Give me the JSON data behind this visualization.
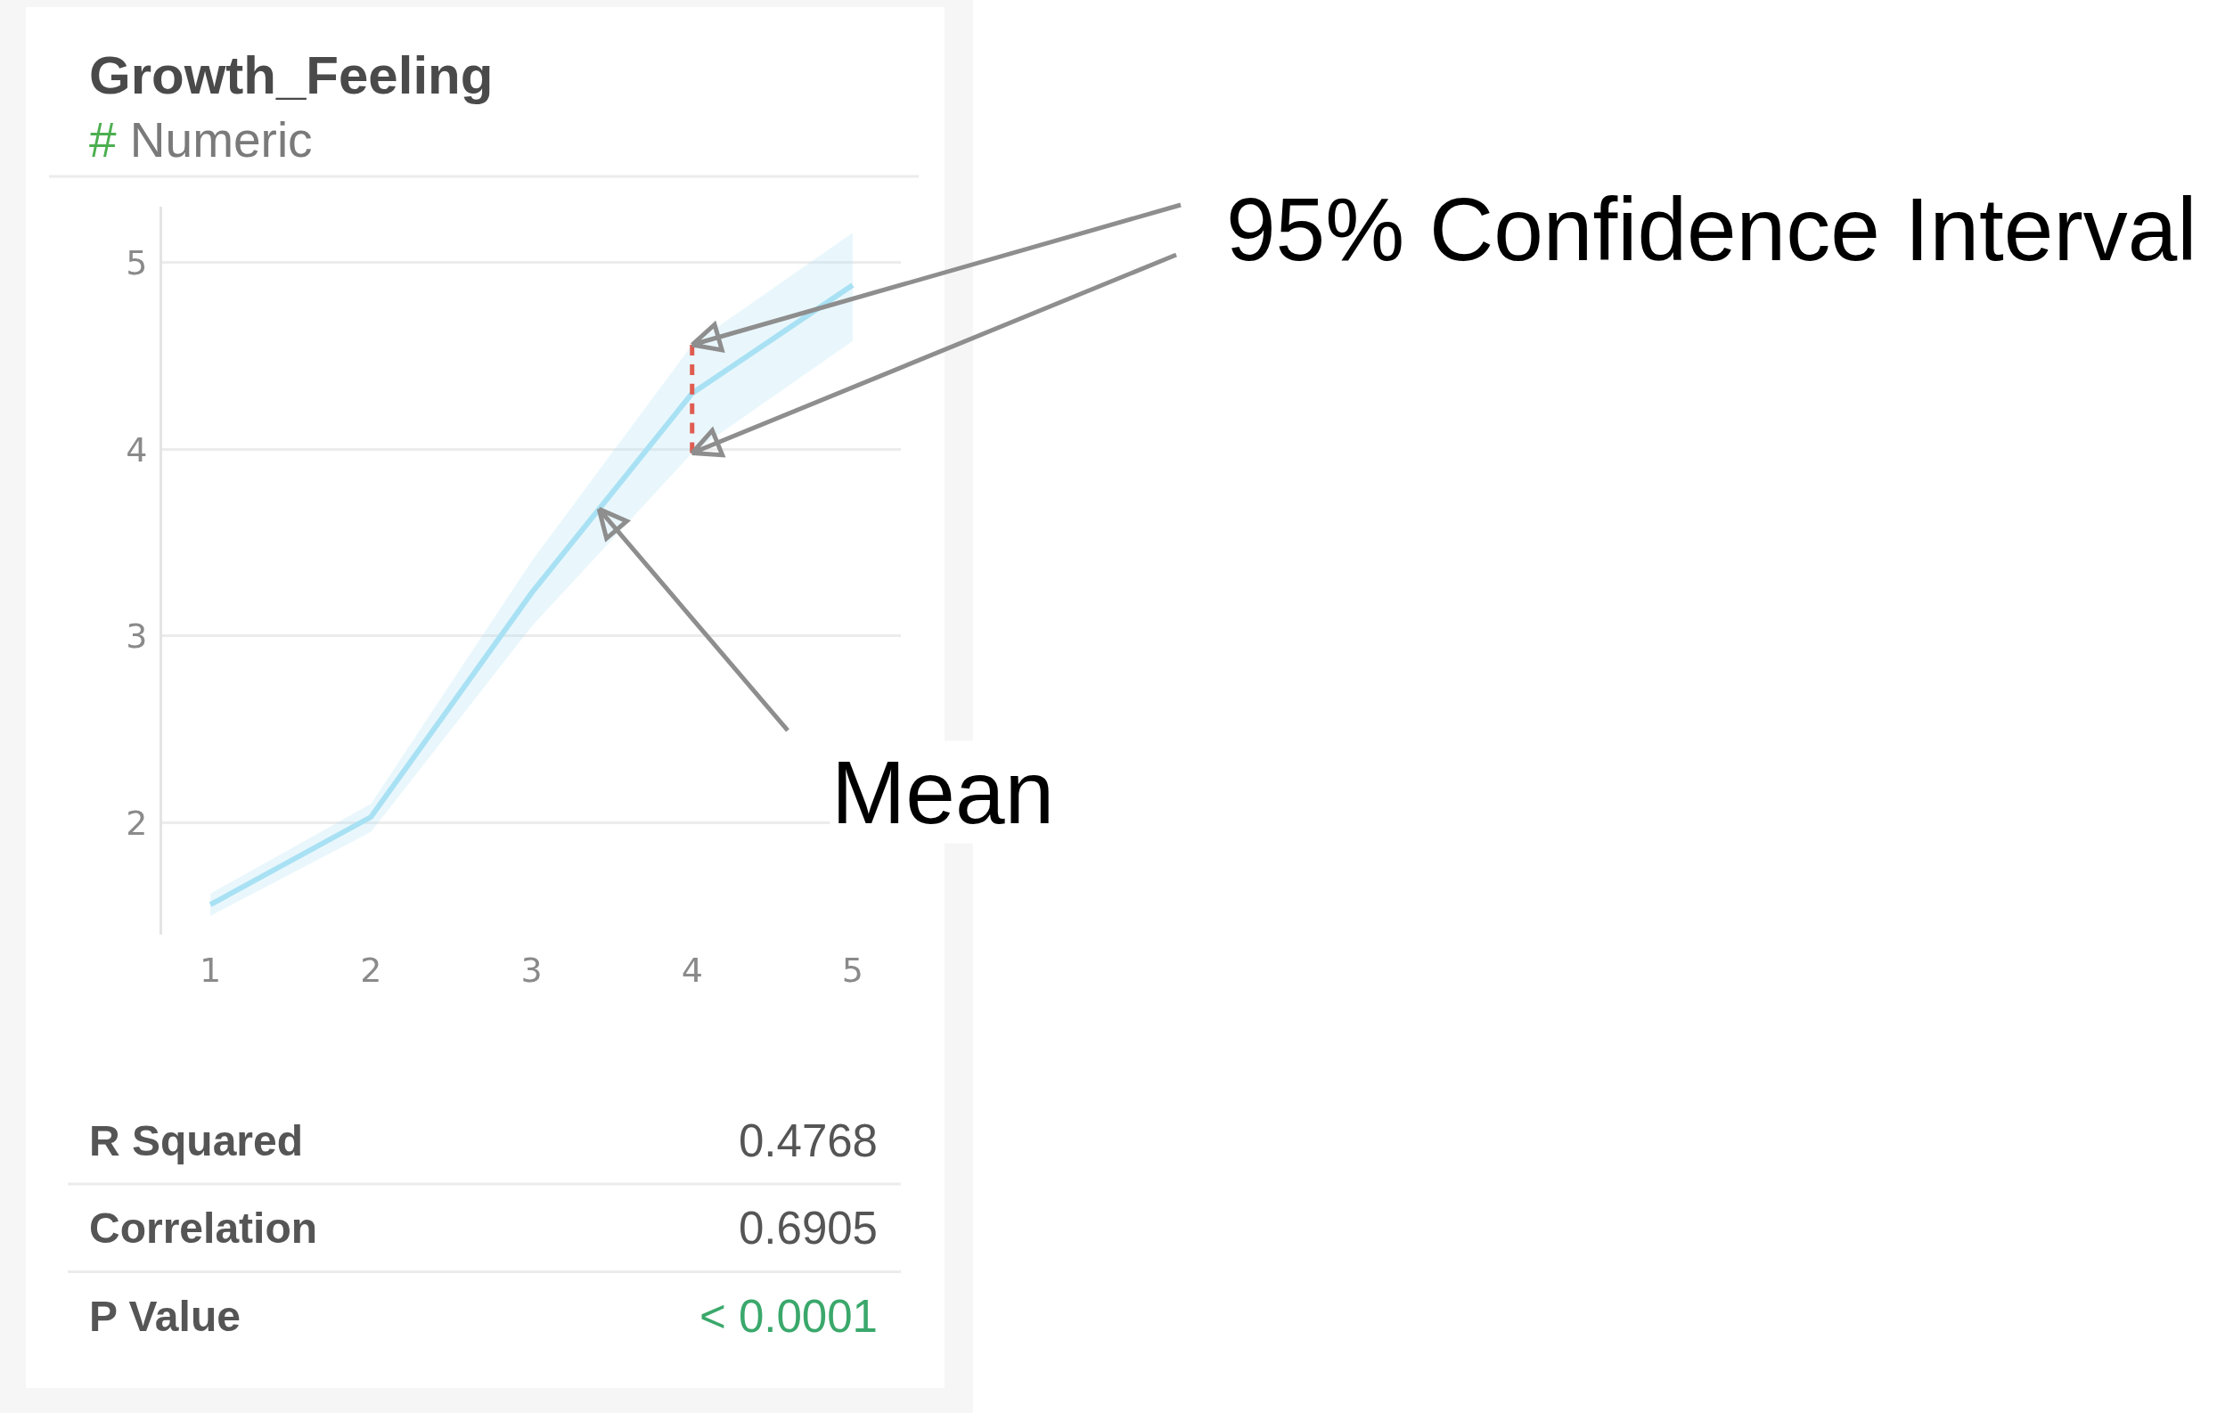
{
  "chart_data": {
    "type": "line",
    "title": "Growth_Feeling",
    "subtitle": "# Numeric",
    "x": [
      1,
      2,
      3,
      4,
      5
    ],
    "series": [
      {
        "color": "#a9e1f4",
        "values": [
          1.56,
          2.03,
          3.23,
          4.3,
          4.88
        ],
        "lower": [
          1.5,
          1.95,
          3.05,
          3.98,
          4.58
        ],
        "upper": [
          1.62,
          2.1,
          3.4,
          4.56,
          5.16
        ]
      },
      {
        "type": "line",
        "x": [
          4,
          4
        ],
        "color": "#e05c50",
        "values": [
          3.98,
          4.56
        ],
        "line_style": "dashed"
      }
    ],
    "xlim": [
      0.7,
      5.3
    ],
    "ylim": [
      1.4,
      5.3
    ],
    "xticks": [
      1,
      2,
      3,
      4,
      5
    ],
    "yticks": [
      2,
      3,
      4,
      5
    ],
    "grid": "y",
    "line_style": "solid",
    "annotations": [
      {
        "text": "95% Confidence Interval",
        "x": 4,
        "y": 4.56
      },
      {
        "text": "Mean",
        "x": 3.42,
        "y": 3.68
      },
      "R Squared",
      "0.4768",
      "Correlation",
      "0.6905",
      "P Value",
      "< 0.0001"
    ]
  }
}
